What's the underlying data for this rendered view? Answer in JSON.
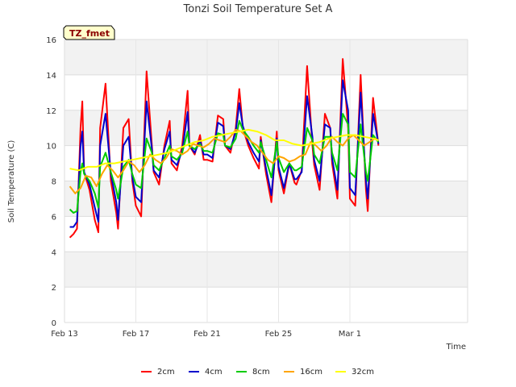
{
  "chart_data": {
    "type": "line",
    "title": "Tonzi Soil Temperature Set A",
    "xlabel": "Time",
    "ylabel": "Soil Temperature (C)",
    "ylim": [
      0,
      16
    ],
    "yticks": [
      0,
      2,
      4,
      6,
      8,
      10,
      12,
      14,
      16
    ],
    "xlim": [
      0,
      22.6
    ],
    "xticks": [
      {
        "value": 0,
        "label": "Feb 13"
      },
      {
        "value": 4,
        "label": "Feb 17"
      },
      {
        "value": 8,
        "label": "Feb 21"
      },
      {
        "value": 12,
        "label": "Feb 25"
      },
      {
        "value": 16,
        "label": "Mar 1"
      }
    ],
    "site_tag": "TZ_fmet",
    "grid": true,
    "legend_position": "bottom-center",
    "series": [
      {
        "name": "2cm",
        "color": "#ff0000",
        "x": [
          0.3,
          0.5,
          0.7,
          0.9,
          1.0,
          1.1,
          1.4,
          1.7,
          1.9,
          2.0,
          2.3,
          2.6,
          2.9,
          3.0,
          3.3,
          3.6,
          3.8,
          4.0,
          4.3,
          4.6,
          4.9,
          5.0,
          5.3,
          5.6,
          5.9,
          6.0,
          6.3,
          6.6,
          6.9,
          7.0,
          7.3,
          7.6,
          7.8,
          8.0,
          8.3,
          8.6,
          8.9,
          9.0,
          9.3,
          9.6,
          9.8,
          10.0,
          10.3,
          10.6,
          10.9,
          11.0,
          11.3,
          11.6,
          11.9,
          12.0,
          12.3,
          12.6,
          12.9,
          13.0,
          13.3,
          13.6,
          13.9,
          14.0,
          14.3,
          14.6,
          14.9,
          15.0,
          15.3,
          15.6,
          15.9,
          16.0,
          16.3,
          16.6,
          16.9,
          17.0,
          17.3,
          17.6
        ],
        "y": [
          4.8,
          5.0,
          5.3,
          11.0,
          12.5,
          8.5,
          7.5,
          5.8,
          5.1,
          11.0,
          13.5,
          8.0,
          6.2,
          5.3,
          11.0,
          11.5,
          8.0,
          6.6,
          6.0,
          14.2,
          10.0,
          8.5,
          7.8,
          10.0,
          11.4,
          9.0,
          8.6,
          10.0,
          13.1,
          10.0,
          9.5,
          10.6,
          9.2,
          9.2,
          9.1,
          11.7,
          11.5,
          10.0,
          9.6,
          11.0,
          13.2,
          11.0,
          10.0,
          9.3,
          8.7,
          10.5,
          8.4,
          6.8,
          10.8,
          8.6,
          7.3,
          9.0,
          7.9,
          7.8,
          8.6,
          14.5,
          10.0,
          8.9,
          7.5,
          11.8,
          11.0,
          9.0,
          7.0,
          14.9,
          11.0,
          7.0,
          6.6,
          14.0,
          7.5,
          6.3,
          12.7,
          10.0
        ]
      },
      {
        "name": "4cm",
        "color": "#0000cc",
        "x": [
          0.3,
          0.5,
          0.7,
          0.9,
          1.0,
          1.1,
          1.4,
          1.7,
          1.9,
          2.0,
          2.3,
          2.6,
          2.9,
          3.0,
          3.3,
          3.6,
          3.8,
          4.0,
          4.3,
          4.6,
          4.9,
          5.0,
          5.3,
          5.6,
          5.9,
          6.0,
          6.3,
          6.6,
          6.9,
          7.0,
          7.3,
          7.6,
          7.8,
          8.0,
          8.3,
          8.6,
          8.9,
          9.0,
          9.3,
          9.6,
          9.8,
          10.0,
          10.3,
          10.6,
          10.9,
          11.0,
          11.3,
          11.6,
          11.9,
          12.0,
          12.3,
          12.6,
          12.9,
          13.0,
          13.3,
          13.6,
          13.9,
          14.0,
          14.3,
          14.6,
          14.9,
          15.0,
          15.3,
          15.6,
          15.9,
          16.0,
          16.3,
          16.6,
          16.9,
          17.0,
          17.3,
          17.6
        ],
        "y": [
          5.4,
          5.4,
          5.7,
          10.0,
          10.8,
          8.5,
          7.8,
          6.5,
          5.7,
          10.0,
          11.8,
          8.4,
          6.8,
          5.8,
          10.0,
          10.5,
          8.2,
          7.1,
          6.8,
          12.5,
          9.8,
          8.6,
          8.2,
          9.8,
          10.8,
          9.2,
          8.9,
          9.7,
          11.9,
          10.0,
          9.6,
          10.3,
          9.5,
          9.5,
          9.3,
          11.3,
          11.1,
          10.0,
          9.8,
          10.8,
          12.4,
          11.1,
          10.2,
          9.6,
          9.1,
          10.3,
          8.7,
          7.2,
          10.4,
          8.8,
          7.6,
          9.0,
          8.1,
          8.1,
          8.5,
          12.8,
          10.5,
          9.2,
          8.0,
          11.2,
          11.0,
          9.3,
          7.5,
          13.7,
          12.0,
          7.6,
          7.2,
          13.0,
          8.0,
          7.0,
          11.8,
          10.1
        ]
      },
      {
        "name": "8cm",
        "color": "#00cc00",
        "x": [
          0.3,
          0.5,
          0.7,
          0.9,
          1.0,
          1.1,
          1.4,
          1.7,
          1.9,
          2.0,
          2.3,
          2.6,
          2.9,
          3.0,
          3.3,
          3.6,
          3.8,
          4.0,
          4.3,
          4.6,
          4.9,
          5.0,
          5.3,
          5.6,
          5.9,
          6.0,
          6.3,
          6.6,
          6.9,
          7.0,
          7.3,
          7.6,
          7.8,
          8.0,
          8.3,
          8.6,
          8.9,
          9.0,
          9.3,
          9.6,
          9.8,
          10.0,
          10.3,
          10.6,
          10.9,
          11.0,
          11.3,
          11.6,
          11.9,
          12.0,
          12.3,
          12.6,
          12.9,
          13.0,
          13.3,
          13.6,
          13.9,
          14.0,
          14.3,
          14.6,
          14.9,
          15.0,
          15.3,
          15.6,
          15.9,
          16.0,
          16.3,
          16.6,
          16.9,
          17.0,
          17.3,
          17.6
        ],
        "y": [
          6.4,
          6.2,
          6.3,
          8.5,
          9.0,
          8.4,
          8.0,
          7.3,
          6.5,
          8.8,
          9.6,
          8.5,
          7.5,
          7.0,
          8.8,
          9.2,
          8.4,
          7.8,
          7.6,
          10.4,
          9.6,
          8.9,
          8.6,
          9.3,
          10.0,
          9.4,
          9.2,
          9.6,
          10.8,
          10.0,
          9.8,
          10.1,
          9.7,
          9.7,
          9.6,
          10.7,
          10.6,
          10.0,
          9.9,
          10.4,
          11.4,
          10.9,
          10.5,
          10.0,
          9.6,
          10.2,
          9.2,
          8.2,
          10.2,
          9.3,
          8.5,
          9.0,
          8.6,
          8.6,
          8.8,
          11.0,
          10.3,
          9.5,
          9.0,
          10.5,
          10.5,
          9.6,
          8.6,
          11.8,
          11.2,
          8.5,
          8.2,
          11.2,
          8.5,
          8.0,
          10.6,
          10.2
        ]
      },
      {
        "name": "16cm",
        "color": "#ffa500",
        "x": [
          0.3,
          0.6,
          0.9,
          1.2,
          1.5,
          1.8,
          2.1,
          2.4,
          2.7,
          3.0,
          3.3,
          3.6,
          3.9,
          4.2,
          4.5,
          4.8,
          5.1,
          5.4,
          5.7,
          6.0,
          6.3,
          6.6,
          6.9,
          7.2,
          7.5,
          7.8,
          8.1,
          8.4,
          8.7,
          9.0,
          9.3,
          9.6,
          9.9,
          10.2,
          10.5,
          10.8,
          11.1,
          11.4,
          11.7,
          12.0,
          12.3,
          12.6,
          12.9,
          13.2,
          13.5,
          13.8,
          14.1,
          14.4,
          14.7,
          15.0,
          15.3,
          15.6,
          15.9,
          16.2,
          16.5,
          16.8,
          17.1,
          17.4,
          17.6
        ],
        "y": [
          7.7,
          7.3,
          7.6,
          8.3,
          8.2,
          7.7,
          8.4,
          8.9,
          8.6,
          8.2,
          8.6,
          9.1,
          8.9,
          8.5,
          8.9,
          9.5,
          9.2,
          9.0,
          9.3,
          9.8,
          9.7,
          9.5,
          9.7,
          10.1,
          10.0,
          9.9,
          10.1,
          10.4,
          10.3,
          10.2,
          10.5,
          10.9,
          10.8,
          10.5,
          10.2,
          10.0,
          9.6,
          9.2,
          9.0,
          9.4,
          9.3,
          9.1,
          9.2,
          9.4,
          9.5,
          10.2,
          10.0,
          9.7,
          10.0,
          10.5,
          10.2,
          10.0,
          10.4,
          10.6,
          10.3,
          10.0,
          10.2,
          10.4,
          10.3
        ]
      },
      {
        "name": "32cm",
        "color": "#ffff00",
        "x": [
          0.3,
          0.8,
          1.3,
          1.8,
          2.3,
          2.8,
          3.3,
          3.8,
          4.3,
          4.8,
          5.3,
          5.8,
          6.3,
          6.8,
          7.3,
          7.8,
          8.3,
          8.8,
          9.3,
          9.8,
          10.3,
          10.8,
          11.3,
          11.8,
          12.3,
          12.8,
          13.3,
          13.8,
          14.3,
          14.8,
          15.3,
          15.8,
          16.3,
          16.8,
          17.3,
          17.6
        ],
        "y": [
          8.7,
          8.6,
          8.8,
          8.8,
          9.0,
          9.0,
          9.1,
          9.2,
          9.3,
          9.4,
          9.5,
          9.6,
          9.8,
          10.0,
          10.2,
          10.3,
          10.5,
          10.6,
          10.7,
          10.8,
          10.9,
          10.8,
          10.6,
          10.3,
          10.3,
          10.1,
          10.0,
          10.1,
          10.2,
          10.4,
          10.5,
          10.6,
          10.6,
          10.5,
          10.4,
          10.3
        ]
      }
    ]
  }
}
